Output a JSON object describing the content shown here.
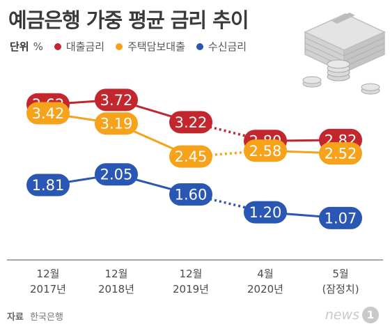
{
  "header": {
    "title": "예금은행 가중 평균 금리 추이"
  },
  "legend": {
    "unit_label": "단위",
    "unit": "%",
    "items": [
      {
        "label": "대출금리",
        "color": "#c4262e"
      },
      {
        "label": "주택담보대출",
        "color": "#f7a21b"
      },
      {
        "label": "수신금리",
        "color": "#2a56b4"
      }
    ]
  },
  "chart_data": {
    "type": "line",
    "title": "예금은행 가중 평균 금리 추이",
    "unit": "%",
    "categories": [
      {
        "line1": "12월",
        "line2": "2017년"
      },
      {
        "line1": "12월",
        "line2": "2018년"
      },
      {
        "line1": "12월",
        "line2": "2019년"
      },
      {
        "line1": "4월",
        "line2": "2020년"
      },
      {
        "line1": "5월",
        "line2": "(잠정치)"
      }
    ],
    "series": [
      {
        "name": "대출금리",
        "color": "#c4262e",
        "values": [
          3.62,
          3.72,
          3.22,
          2.8,
          2.82
        ],
        "labels": [
          "3.62",
          "3.72",
          "3.22",
          "2.80",
          "2.82"
        ]
      },
      {
        "name": "주택담보대출",
        "color": "#f7a21b",
        "values": [
          3.42,
          3.19,
          2.45,
          2.58,
          2.52
        ],
        "labels": [
          "3.42",
          "3.19",
          "2.45",
          "2.58",
          "2.52"
        ]
      },
      {
        "name": "수신금리",
        "color": "#2a56b4",
        "values": [
          1.81,
          2.05,
          1.6,
          1.2,
          1.07
        ],
        "labels": [
          "1.81",
          "2.05",
          "1.60",
          "1.20",
          "1.07"
        ]
      }
    ],
    "dashed_from_index": 2,
    "legend_position": "top-left",
    "grid": false
  },
  "footer": {
    "source_label": "자료",
    "source": "한국은행"
  },
  "logo": {
    "text": "news",
    "badge": "1"
  }
}
